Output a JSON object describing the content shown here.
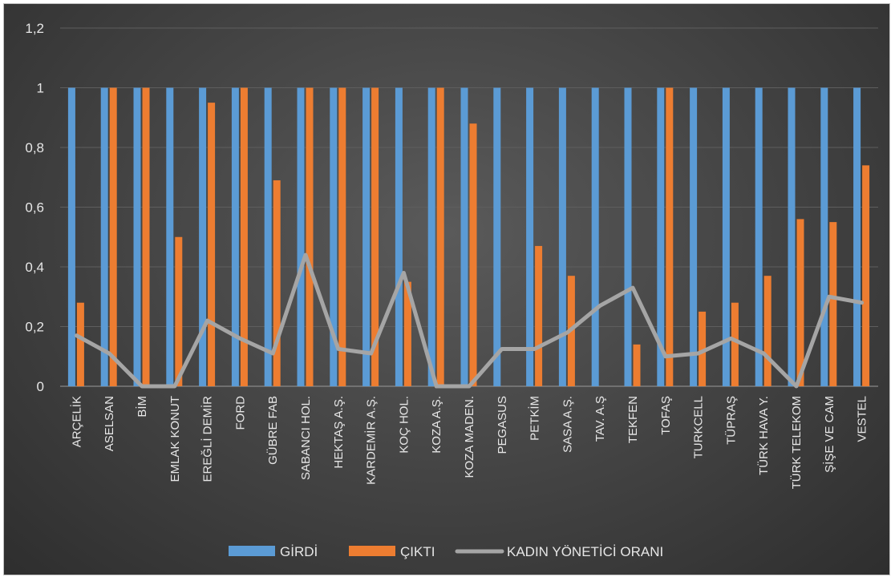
{
  "chart_data": {
    "type": "bar",
    "categories": [
      "ARÇELİK",
      "ASELSAN",
      "BİM",
      "EMLAK KONUT",
      "EREĞLİ DEMİR",
      "FORD",
      "GÜBRE FAB",
      "SABANCI HOL.",
      "HEKTAŞ A.Ş.",
      "KARDEMİR A.Ş.",
      "KOÇ HOL.",
      "KOZA A.Ş.",
      "KOZA MADEN.",
      "PEGASUS",
      "PETKİM",
      "SASA A.Ş.",
      "TAV. A.Ş",
      "TEKFEN",
      "TOFAŞ",
      "TURKCELL",
      "TÜPRAŞ",
      "TÜRK HAVA Y.",
      "TÜRK TELEKOM",
      "ŞİŞE VE CAM",
      "VESTEL"
    ],
    "series": [
      {
        "name": "GİRDİ",
        "type": "bar",
        "color": "#5b9bd5",
        "values": [
          1,
          1,
          1,
          1,
          1,
          1,
          1,
          1,
          1,
          1,
          1,
          1,
          1,
          1,
          1,
          1,
          1,
          1,
          1,
          1,
          1,
          1,
          1,
          1,
          1
        ]
      },
      {
        "name": "ÇIKTI",
        "type": "bar",
        "color": "#ed7d31",
        "values": [
          0.28,
          1,
          1,
          0.5,
          0.95,
          1,
          0.69,
          1,
          1,
          1,
          0.35,
          1,
          0.88,
          0,
          0.47,
          0.37,
          0,
          0.14,
          1,
          0.25,
          0.28,
          0.37,
          0.56,
          0.55,
          0.74
        ]
      },
      {
        "name": "KADIN YÖNETİCİ ORANI",
        "type": "line",
        "color": "#a5a5a5",
        "values": [
          0.17,
          0.11,
          0,
          0,
          0.22,
          0.16,
          0.11,
          0.44,
          0.125,
          0.11,
          0.38,
          0,
          0,
          0.125,
          0.125,
          0.18,
          0.27,
          0.33,
          0.1,
          0.11,
          0.16,
          0.11,
          0,
          0.3,
          0.28
        ]
      }
    ],
    "yticks": [
      "0",
      "0,2",
      "0,4",
      "0,6",
      "0,8",
      "1",
      "1,2"
    ],
    "ylim": [
      0,
      1.2
    ],
    "grid": true,
    "legend_position": "bottom"
  }
}
